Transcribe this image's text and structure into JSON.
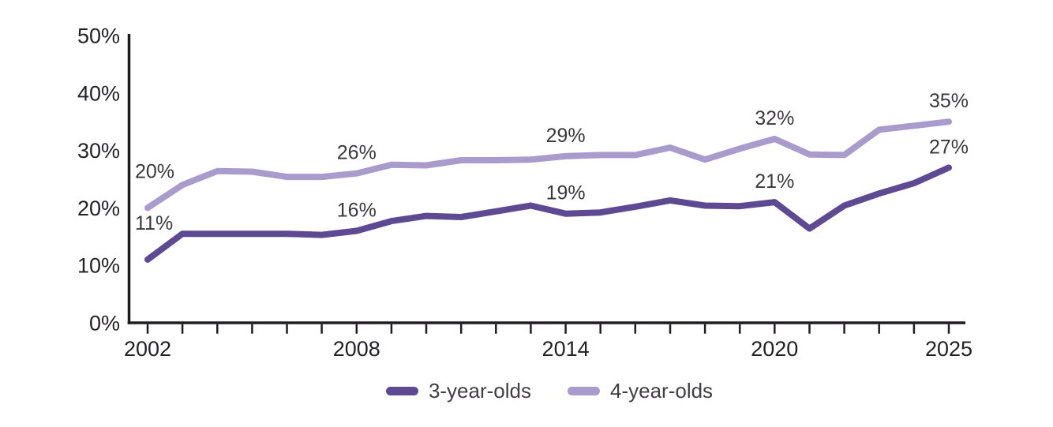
{
  "chart_data": {
    "type": "line",
    "title": "",
    "xlabel": "",
    "ylabel": "",
    "grid": false,
    "background": "#ffffff",
    "axis_color": "#1f1d20",
    "x": [
      2002,
      2003,
      2004,
      2005,
      2006,
      2007,
      2008,
      2009,
      2010,
      2011,
      2012,
      2013,
      2014,
      2015,
      2016,
      2017,
      2018,
      2019,
      2020,
      2021,
      2022,
      2023,
      2024,
      2025
    ],
    "x_axis_labeled_ticks": [
      2002,
      2008,
      2014,
      2020,
      2025
    ],
    "y_axis": {
      "min": 0,
      "max": 50,
      "ticks": [
        {
          "value": 0,
          "label": "0%"
        },
        {
          "value": 10,
          "label": "10%"
        },
        {
          "value": 20,
          "label": "20%"
        },
        {
          "value": 30,
          "label": "30%"
        },
        {
          "value": 40,
          "label": "40%"
        },
        {
          "value": 50,
          "label": "50%"
        }
      ]
    },
    "series": [
      {
        "name": "3-year-olds",
        "color": "#5d4a93",
        "values": [
          11,
          15.5,
          15.5,
          15.5,
          15.5,
          15.3,
          16,
          17.7,
          18.6,
          18.4,
          19.4,
          20.4,
          19,
          19.2,
          20.2,
          21.3,
          20.4,
          20.3,
          21,
          16.4,
          20.4,
          22.5,
          24.3,
          27
        ]
      },
      {
        "name": "4-year-olds",
        "color": "#a99ccd",
        "values": [
          20,
          24,
          26.4,
          26.3,
          25.4,
          25.4,
          26,
          27.5,
          27.4,
          28.3,
          28.3,
          28.4,
          29,
          29.2,
          29.2,
          30.5,
          28.4,
          30.3,
          32,
          29.3,
          29.2,
          33.6,
          34.3,
          35
        ]
      }
    ],
    "point_labels": [
      {
        "series": 0,
        "year": 2002,
        "text": "11%"
      },
      {
        "series": 0,
        "year": 2008,
        "text": "16%"
      },
      {
        "series": 0,
        "year": 2014,
        "text": "19%"
      },
      {
        "series": 0,
        "year": 2020,
        "text": "21%"
      },
      {
        "series": 0,
        "year": 2025,
        "text": "27%"
      },
      {
        "series": 1,
        "year": 2002,
        "text": "20%"
      },
      {
        "series": 1,
        "year": 2008,
        "text": "26%"
      },
      {
        "series": 1,
        "year": 2014,
        "text": "29%"
      },
      {
        "series": 1,
        "year": 2020,
        "text": "32%"
      },
      {
        "series": 1,
        "year": 2025,
        "text": "35%"
      }
    ],
    "legend": {
      "position": "bottom",
      "entries": [
        "3-year-olds",
        "4-year-olds"
      ]
    }
  }
}
